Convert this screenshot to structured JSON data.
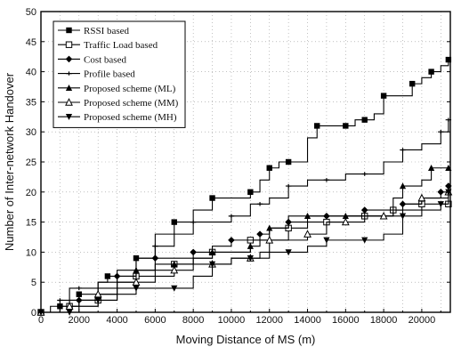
{
  "chart_data": {
    "type": "line",
    "title": "",
    "xlabel": "Moving Distance of MS (m)",
    "ylabel": "Number of Inter-network Handover",
    "xlim": [
      0,
      21500
    ],
    "ylim": [
      0,
      50
    ],
    "xticks": [
      0,
      2000,
      4000,
      6000,
      8000,
      10000,
      12000,
      14000,
      16000,
      18000,
      20000
    ],
    "yticks": [
      0,
      5,
      10,
      15,
      20,
      25,
      30,
      35,
      40,
      45,
      50
    ],
    "grid": true,
    "legend_position": "top-left",
    "series": [
      {
        "name": "RSSI based",
        "marker": "filled-square",
        "points": [
          [
            0,
            0
          ],
          [
            800,
            0
          ],
          [
            1000,
            1
          ],
          [
            1500,
            2
          ],
          [
            2000,
            3
          ],
          [
            3000,
            5
          ],
          [
            3500,
            6
          ],
          [
            4000,
            7
          ],
          [
            5000,
            9
          ],
          [
            6000,
            13
          ],
          [
            7000,
            15
          ],
          [
            8000,
            17
          ],
          [
            9000,
            19
          ],
          [
            10000,
            19
          ],
          [
            11000,
            20
          ],
          [
            11500,
            22
          ],
          [
            12000,
            24
          ],
          [
            12500,
            25
          ],
          [
            13000,
            25
          ],
          [
            14000,
            29
          ],
          [
            14500,
            31
          ],
          [
            15000,
            31
          ],
          [
            16000,
            31
          ],
          [
            16500,
            32
          ],
          [
            17000,
            32
          ],
          [
            17500,
            33
          ],
          [
            18000,
            36
          ],
          [
            19000,
            36
          ],
          [
            19500,
            38
          ],
          [
            20000,
            39
          ],
          [
            20500,
            40
          ],
          [
            21000,
            41
          ],
          [
            21400,
            42
          ]
        ]
      },
      {
        "name": "Traffic Load based",
        "marker": "open-square",
        "points": [
          [
            0,
            0
          ],
          [
            1000,
            0
          ],
          [
            1500,
            1
          ],
          [
            2000,
            2
          ],
          [
            3000,
            2
          ],
          [
            4000,
            5
          ],
          [
            5000,
            6
          ],
          [
            6000,
            7
          ],
          [
            7000,
            8
          ],
          [
            8000,
            9
          ],
          [
            9000,
            10
          ],
          [
            10000,
            10
          ],
          [
            11000,
            12
          ],
          [
            12000,
            12
          ],
          [
            13000,
            14
          ],
          [
            14000,
            15
          ],
          [
            15000,
            15
          ],
          [
            16000,
            16
          ],
          [
            17000,
            16
          ],
          [
            18000,
            16
          ],
          [
            18500,
            17
          ],
          [
            19000,
            17
          ],
          [
            20000,
            18
          ],
          [
            21400,
            18
          ]
        ]
      },
      {
        "name": "Cost based",
        "marker": "filled-diamond",
        "points": [
          [
            0,
            0
          ],
          [
            500,
            0
          ],
          [
            1000,
            1
          ],
          [
            1500,
            2
          ],
          [
            2000,
            2
          ],
          [
            3000,
            4
          ],
          [
            4000,
            6
          ],
          [
            5000,
            7
          ],
          [
            6000,
            9
          ],
          [
            7000,
            9
          ],
          [
            8000,
            10
          ],
          [
            9000,
            11
          ],
          [
            10000,
            12
          ],
          [
            11000,
            12
          ],
          [
            11500,
            13
          ],
          [
            12000,
            14
          ],
          [
            13000,
            15
          ],
          [
            14000,
            16
          ],
          [
            15000,
            16
          ],
          [
            16000,
            16
          ],
          [
            17000,
            17
          ],
          [
            18000,
            17
          ],
          [
            19000,
            18
          ],
          [
            20000,
            19
          ],
          [
            21000,
            20
          ],
          [
            21400,
            21
          ]
        ]
      },
      {
        "name": "Profile based",
        "marker": "dash-cross",
        "points": [
          [
            0,
            0
          ],
          [
            500,
            1
          ],
          [
            1000,
            2
          ],
          [
            1500,
            4
          ],
          [
            2000,
            4
          ],
          [
            3000,
            5
          ],
          [
            4000,
            6
          ],
          [
            5000,
            9
          ],
          [
            6000,
            11
          ],
          [
            7000,
            13
          ],
          [
            8000,
            15
          ],
          [
            9000,
            15
          ],
          [
            10000,
            16
          ],
          [
            11000,
            18
          ],
          [
            11500,
            18
          ],
          [
            12000,
            19
          ],
          [
            13000,
            21
          ],
          [
            14000,
            22
          ],
          [
            15000,
            22
          ],
          [
            16000,
            23
          ],
          [
            17000,
            23
          ],
          [
            18000,
            25
          ],
          [
            19000,
            27
          ],
          [
            20000,
            28
          ],
          [
            21000,
            30
          ],
          [
            21400,
            32
          ]
        ]
      },
      {
        "name": "Proposed scheme (ML)",
        "marker": "filled-triangle",
        "points": [
          [
            0,
            0
          ],
          [
            1000,
            0
          ],
          [
            1500,
            1
          ],
          [
            2000,
            2
          ],
          [
            3000,
            3
          ],
          [
            4000,
            5
          ],
          [
            5000,
            7
          ],
          [
            6000,
            8
          ],
          [
            7000,
            8
          ],
          [
            8000,
            9
          ],
          [
            9000,
            10
          ],
          [
            10000,
            10
          ],
          [
            11000,
            11
          ],
          [
            11500,
            12
          ],
          [
            12000,
            14
          ],
          [
            13000,
            16
          ],
          [
            14000,
            16
          ],
          [
            15000,
            16
          ],
          [
            16000,
            16
          ],
          [
            17000,
            16
          ],
          [
            18000,
            16
          ],
          [
            18500,
            19
          ],
          [
            19000,
            21
          ],
          [
            20000,
            22
          ],
          [
            20500,
            24
          ],
          [
            21400,
            24
          ]
        ]
      },
      {
        "name": "Proposed scheme (MM)",
        "marker": "open-triangle",
        "points": [
          [
            0,
            0
          ],
          [
            1000,
            0
          ],
          [
            1500,
            1
          ],
          [
            2000,
            1
          ],
          [
            3000,
            3
          ],
          [
            4000,
            4
          ],
          [
            5000,
            5
          ],
          [
            6000,
            6
          ],
          [
            7000,
            7
          ],
          [
            8000,
            8
          ],
          [
            9000,
            8
          ],
          [
            10000,
            9
          ],
          [
            11000,
            9
          ],
          [
            11500,
            10
          ],
          [
            12000,
            12
          ],
          [
            13000,
            12
          ],
          [
            14000,
            13
          ],
          [
            15000,
            15
          ],
          [
            16000,
            15
          ],
          [
            17000,
            16
          ],
          [
            18000,
            16
          ],
          [
            19000,
            18
          ],
          [
            20000,
            19
          ],
          [
            21000,
            19
          ],
          [
            21400,
            20
          ]
        ]
      },
      {
        "name": "Proposed scheme (MH)",
        "marker": "filled-down-triangle",
        "points": [
          [
            0,
            0
          ],
          [
            1000,
            0
          ],
          [
            1500,
            0
          ],
          [
            2000,
            1
          ],
          [
            3000,
            2
          ],
          [
            4000,
            3
          ],
          [
            5000,
            4
          ],
          [
            6000,
            4
          ],
          [
            7000,
            4
          ],
          [
            8000,
            6
          ],
          [
            9000,
            8
          ],
          [
            10000,
            9
          ],
          [
            11000,
            9
          ],
          [
            12000,
            10
          ],
          [
            13000,
            10
          ],
          [
            14000,
            11
          ],
          [
            15000,
            12
          ],
          [
            16000,
            12
          ],
          [
            17000,
            12
          ],
          [
            18000,
            13
          ],
          [
            19000,
            16
          ],
          [
            20000,
            17
          ],
          [
            21000,
            18
          ],
          [
            21400,
            20
          ]
        ]
      }
    ]
  }
}
